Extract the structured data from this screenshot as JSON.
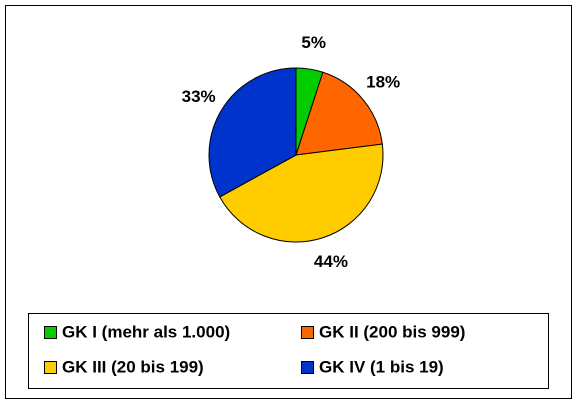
{
  "chart_data": {
    "type": "pie",
    "categories": [
      "GK I (mehr als 1.000)",
      "GK II (200 bis 999)",
      "GK III (20 bis 199)",
      "GK IV (1 bis 19)"
    ],
    "values": [
      5,
      18,
      44,
      33
    ],
    "value_labels": [
      "5%",
      "18%",
      "44%",
      "33%"
    ],
    "colors": [
      "#00cc00",
      "#ff6600",
      "#ffcc00",
      "#0033cc"
    ],
    "legend": "bottom"
  }
}
